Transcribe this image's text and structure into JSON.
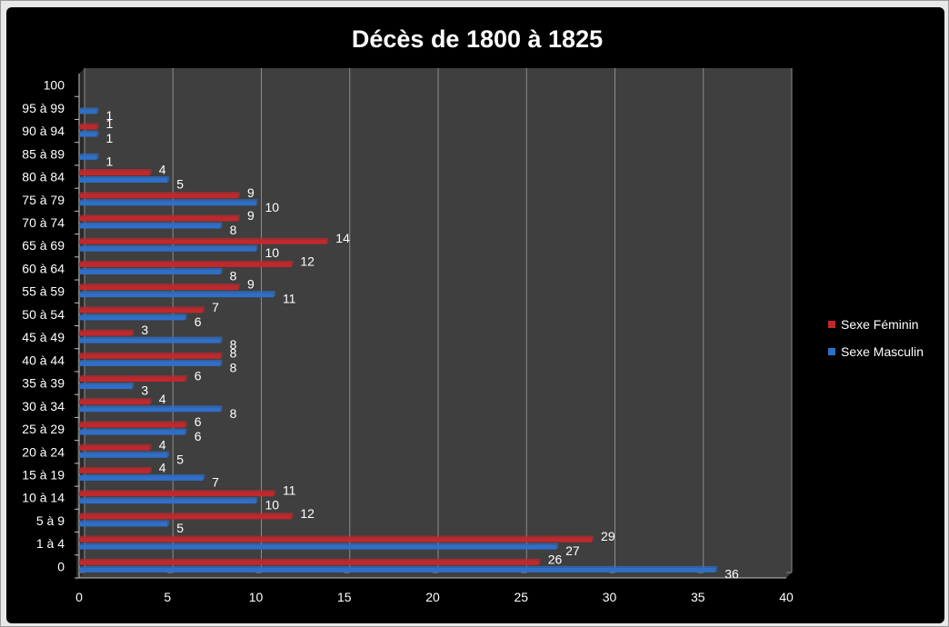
{
  "colors": {
    "female": "#c0282d",
    "male": "#2f6fc7",
    "plot_bg": "#3f3f3f",
    "chart_bg": "#000000",
    "grid": "#8c8c8c",
    "text": "#ffffff"
  },
  "chart_data": {
    "type": "bar",
    "orientation": "horizontal",
    "title": "Décès de 1800 à 1825",
    "categories": [
      "0",
      "1 à 4",
      "5 à 9",
      "10 à 14",
      "15 à 19",
      "20 à 24",
      "25 à 29",
      "30 à 34",
      "35 à 39",
      "40 à 44",
      "45 à 49",
      "50 à 54",
      "55 à 59",
      "60 à 64",
      "65 à 69",
      "70 à 74",
      "75 à 79",
      "80 à 84",
      "85 à 89",
      "90 à 94",
      "95 à 99",
      "100"
    ],
    "series": [
      {
        "name": "Sexe Féminin",
        "values": [
          26,
          29,
          12,
          11,
          4,
          4,
          6,
          4,
          6,
          8,
          3,
          7,
          9,
          12,
          14,
          9,
          9,
          4,
          null,
          1,
          null,
          null
        ]
      },
      {
        "name": "Sexe Masculin",
        "values": [
          36,
          27,
          5,
          10,
          7,
          5,
          6,
          8,
          3,
          8,
          8,
          6,
          11,
          8,
          10,
          8,
          10,
          5,
          1,
          1,
          1,
          null
        ]
      }
    ],
    "xlim": [
      0,
      40
    ],
    "xticks": [
      0,
      5,
      10,
      15,
      20,
      25,
      30,
      35,
      40
    ],
    "grid": "vertical major gridlines",
    "legend_position": "right",
    "data_labels": true,
    "xlabel": "",
    "ylabel": ""
  }
}
